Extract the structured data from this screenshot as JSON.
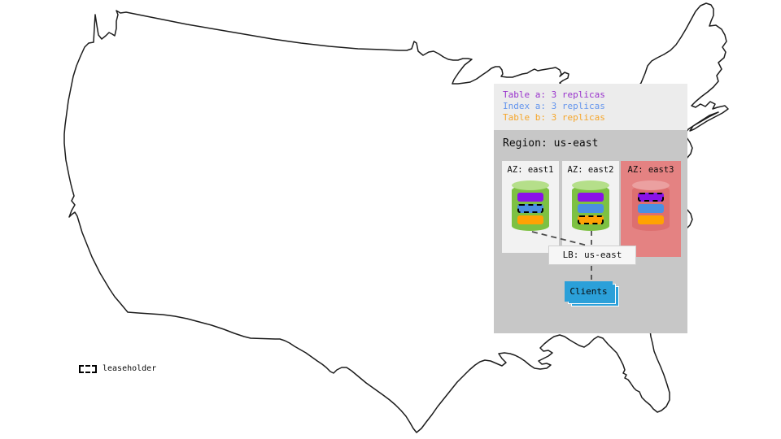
{
  "legend": {
    "items": [
      {
        "id": "table-a",
        "label": "Table a: 3 replicas",
        "color": "#9933CC"
      },
      {
        "id": "index-a",
        "label": "Index a: 3 replicas",
        "color": "#6495ED"
      },
      {
        "id": "table-b",
        "label": "Table b: 3 replicas",
        "color": "#F5A62B"
      }
    ]
  },
  "region": {
    "title": "Region: us-east",
    "azs": [
      {
        "label": "AZ: east1",
        "status": "up",
        "replicas": [
          {
            "name": "table-a",
            "leaseholder": false
          },
          {
            "name": "index-a",
            "leaseholder": true
          },
          {
            "name": "table-b",
            "leaseholder": false
          }
        ]
      },
      {
        "label": "AZ: east2",
        "status": "up",
        "replicas": [
          {
            "name": "table-a",
            "leaseholder": false
          },
          {
            "name": "index-a",
            "leaseholder": false
          },
          {
            "name": "table-b",
            "leaseholder": true
          }
        ]
      },
      {
        "label": "AZ: east3",
        "status": "down",
        "replicas": [
          {
            "name": "table-a",
            "leaseholder": true
          },
          {
            "name": "index-a",
            "leaseholder": false
          },
          {
            "name": "table-b",
            "leaseholder": false
          }
        ]
      }
    ],
    "load_balancer": {
      "label": "LB: us-east"
    },
    "clients": {
      "label": "Clients"
    },
    "connectors": [
      {
        "from": "az-east1",
        "to": "lb"
      },
      {
        "from": "az-east2",
        "to": "lb"
      },
      {
        "from": "lb",
        "to": "clients"
      }
    ]
  },
  "map_key": {
    "leaseholder_label": "leaseholder"
  },
  "colors": {
    "replica_table_a": "#8A12E8",
    "replica_index_a": "#4A90E2",
    "replica_table_b": "#FFA203",
    "node_up_body": "#7DC142",
    "node_up_top": "#B5DF8A",
    "node_down_body": "#DD6F6F",
    "node_down_top": "#EBA0A0",
    "az_up_bg": "#F2F2F2",
    "az_down_bg": "#E48282",
    "region_bg": "#C7C7C7",
    "legend_bg": "#ECECEC",
    "lb_bg": "#F6F6F6",
    "clients_bg": "#2BA0D9",
    "map_outline": "#1C1C1C"
  }
}
